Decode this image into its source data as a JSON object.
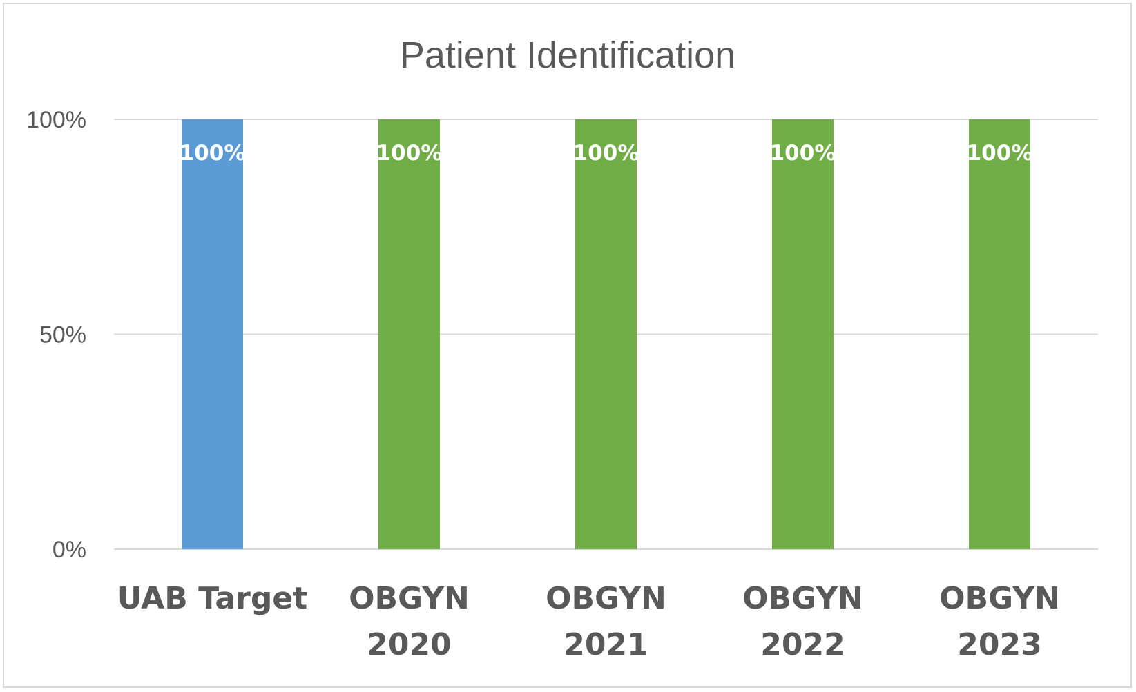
{
  "chart_data": {
    "type": "bar",
    "title": "Patient Identification",
    "xlabel": "",
    "ylabel": "",
    "categories": [
      [
        "UAB Target"
      ],
      [
        "OBGYN",
        "2020"
      ],
      [
        "OBGYN",
        "2021"
      ],
      [
        "OBGYN",
        "2022"
      ],
      [
        "OBGYN",
        "2023"
      ]
    ],
    "values": [
      100,
      100,
      100,
      100,
      100
    ],
    "data_labels": [
      "100%",
      "100%",
      "100%",
      "100%",
      "100%"
    ],
    "bar_colors": [
      "#5b9bd5",
      "#70ad47",
      "#70ad47",
      "#70ad47",
      "#70ad47"
    ],
    "ylim": [
      0,
      100
    ],
    "yticks": [
      0,
      50,
      100
    ],
    "ytick_labels": [
      "0%",
      "50%",
      "100%"
    ],
    "grid": true,
    "legend": "none"
  }
}
